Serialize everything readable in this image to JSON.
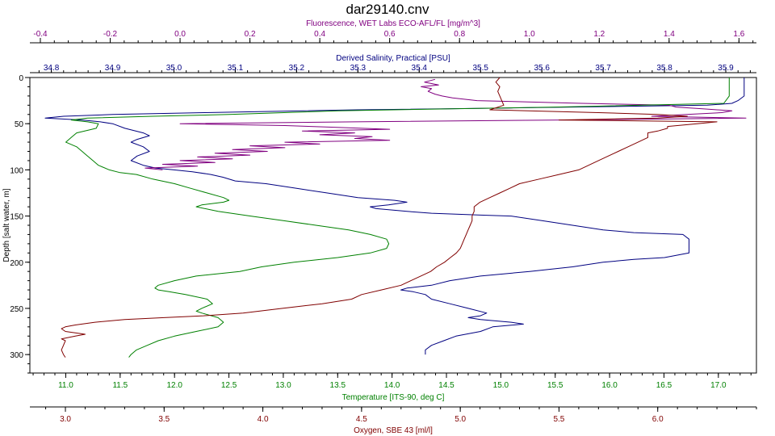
{
  "chart_data": {
    "type": "line",
    "title": "dar29140.cnv",
    "ylabel": "Depth [salt water, m]",
    "ylim": [
      0,
      320
    ],
    "y_ticks": [
      0,
      50,
      100,
      150,
      200,
      250,
      300
    ],
    "grid": false,
    "colors": {
      "fluorescence": "#800080",
      "salinity": "#000080",
      "temperature": "#008000",
      "oxygen": "#800000"
    },
    "axes": {
      "fluorescence": {
        "label": "Fluorescence, WET Labs ECO-AFL/FL [mg/m^3]",
        "range": [
          -0.43,
          1.65
        ],
        "ticks": [
          "-0.4",
          "-0.2",
          "0.0",
          "0.2",
          "0.4",
          "0.6",
          "0.8",
          "1.0",
          "1.2",
          "1.4",
          "1.6"
        ]
      },
      "salinity": {
        "label": "Derived Salinity, Practical [PSU]",
        "range": [
          34.765,
          35.95
        ],
        "ticks": [
          "34.8",
          "34.9",
          "35.0",
          "35.1",
          "35.2",
          "35.3",
          "35.4",
          "35.5",
          "35.6",
          "35.7",
          "35.8",
          "35.9"
        ]
      },
      "temperature": {
        "label": "Temperature [ITS-90, deg C]",
        "range": [
          10.67,
          17.35
        ],
        "ticks": [
          "11.0",
          "11.5",
          "12.0",
          "12.5",
          "13.0",
          "13.5",
          "14.0",
          "14.5",
          "15.0",
          "15.5",
          "16.0",
          "16.5",
          "17.0"
        ]
      },
      "oxygen": {
        "label": "Oxygen, SBE 43 [ml/l]",
        "range": [
          2.82,
          6.5
        ],
        "ticks": [
          "3.0",
          "3.5",
          "4.0",
          "4.5",
          "5.0",
          "5.5",
          "6.0"
        ]
      }
    },
    "series": [
      {
        "key": "salinity",
        "depth": [
          0,
          10,
          20,
          25,
          28,
          30,
          33,
          35,
          38,
          40,
          42,
          44,
          46,
          48,
          50,
          55,
          60,
          63,
          67,
          70,
          75,
          80,
          85,
          90,
          95,
          98,
          100,
          102,
          105,
          108,
          112,
          115,
          120,
          125,
          130,
          133,
          135,
          138,
          140,
          142,
          145,
          147,
          149,
          150,
          155,
          160,
          165,
          168,
          170,
          175,
          180,
          185,
          190,
          195,
          197,
          200,
          205,
          210,
          215,
          220,
          225,
          228,
          230,
          232,
          235,
          240,
          245,
          250,
          255,
          258,
          260,
          262,
          265,
          267,
          270,
          275,
          280,
          285,
          290,
          295,
          300
        ],
        "values": [
          35.93,
          35.93,
          35.93,
          35.92,
          35.91,
          35.87,
          35.55,
          35.3,
          35.05,
          34.9,
          34.82,
          34.79,
          34.85,
          34.88,
          34.9,
          34.92,
          34.95,
          34.96,
          34.94,
          34.93,
          34.95,
          34.96,
          34.94,
          34.93,
          34.95,
          34.97,
          35.0,
          35.03,
          35.06,
          35.08,
          35.1,
          35.15,
          35.2,
          35.25,
          35.3,
          35.36,
          35.38,
          35.35,
          35.32,
          35.33,
          35.38,
          35.42,
          35.5,
          35.55,
          35.6,
          35.65,
          35.7,
          35.75,
          35.83,
          35.84,
          35.84,
          35.84,
          35.84,
          35.8,
          35.75,
          35.7,
          35.65,
          35.58,
          35.5,
          35.45,
          35.42,
          35.38,
          35.37,
          35.39,
          35.41,
          35.42,
          35.45,
          35.48,
          35.51,
          35.5,
          35.48,
          35.5,
          35.55,
          35.57,
          35.52,
          35.5,
          35.46,
          35.44,
          35.42,
          35.41,
          35.41
        ]
      },
      {
        "key": "fluorescence",
        "depth": [
          2,
          5,
          8,
          10,
          12,
          15,
          18,
          20,
          22,
          25,
          28,
          30,
          32,
          34,
          36,
          38,
          40,
          42,
          44,
          46,
          48,
          50,
          52,
          54,
          56,
          58,
          60,
          62,
          64,
          66,
          68,
          70,
          72,
          74,
          76,
          78,
          80,
          82,
          84,
          86,
          88,
          90,
          92,
          94,
          96,
          98,
          100
        ],
        "values": [
          0.73,
          0.7,
          0.74,
          0.69,
          0.72,
          0.71,
          0.73,
          0.75,
          0.78,
          0.85,
          1.15,
          1.4,
          1.42,
          1.5,
          1.58,
          1.55,
          1.45,
          1.35,
          1.62,
          1.1,
          0.5,
          0.0,
          0.3,
          0.45,
          0.6,
          0.35,
          0.5,
          0.4,
          0.55,
          0.5,
          0.6,
          0.3,
          0.4,
          0.2,
          0.3,
          0.15,
          0.25,
          0.1,
          0.2,
          0.05,
          0.15,
          0.0,
          0.1,
          -0.05,
          0.05,
          -0.1,
          -0.05
        ]
      },
      {
        "key": "temperature",
        "depth": [
          0,
          10,
          20,
          28,
          32,
          36,
          40,
          42,
          44,
          46,
          48,
          50,
          55,
          60,
          65,
          70,
          75,
          80,
          85,
          90,
          95,
          100,
          103,
          105,
          110,
          115,
          120,
          125,
          130,
          133,
          135,
          138,
          140,
          145,
          150,
          155,
          160,
          165,
          170,
          175,
          180,
          185,
          190,
          195,
          200,
          205,
          210,
          215,
          220,
          225,
          228,
          230,
          232,
          235,
          240,
          245,
          250,
          253,
          255,
          260,
          265,
          270,
          275,
          280,
          285,
          290,
          295,
          300,
          303
        ],
        "values": [
          17.1,
          17.1,
          17.1,
          17.05,
          15.5,
          13.5,
          12.5,
          11.8,
          11.2,
          11.05,
          11.2,
          11.3,
          11.28,
          11.1,
          11.05,
          11.0,
          11.1,
          11.15,
          11.2,
          11.25,
          11.3,
          11.4,
          11.5,
          11.65,
          11.8,
          12.0,
          12.15,
          12.3,
          12.45,
          12.5,
          12.45,
          12.25,
          12.2,
          12.4,
          12.7,
          13.0,
          13.3,
          13.6,
          13.8,
          13.95,
          13.97,
          13.95,
          13.8,
          13.5,
          13.1,
          12.8,
          12.6,
          12.2,
          12.0,
          11.85,
          11.82,
          11.85,
          11.95,
          12.1,
          12.3,
          12.35,
          12.25,
          12.2,
          12.25,
          12.4,
          12.45,
          12.4,
          12.2,
          12.0,
          11.85,
          11.75,
          11.65,
          11.6,
          11.58
        ]
      },
      {
        "key": "oxygen",
        "depth": [
          0,
          5,
          10,
          15,
          20,
          25,
          30,
          35,
          38,
          40,
          42,
          44,
          46,
          48,
          50,
          53,
          55,
          58,
          60,
          65,
          70,
          75,
          80,
          85,
          90,
          95,
          100,
          105,
          110,
          115,
          120,
          125,
          130,
          135,
          140,
          145,
          150,
          155,
          160,
          165,
          170,
          175,
          180,
          185,
          190,
          195,
          200,
          205,
          210,
          215,
          220,
          225,
          230,
          235,
          240,
          245,
          250,
          255,
          258,
          260,
          262,
          265,
          268,
          270,
          272,
          275,
          278,
          280,
          283,
          285,
          290,
          295,
          300,
          303
        ],
        "values": [
          5.2,
          5.18,
          5.2,
          5.19,
          5.2,
          5.21,
          5.22,
          5.15,
          5.7,
          6.0,
          6.15,
          6.0,
          5.5,
          6.3,
          6.2,
          6.05,
          6.05,
          6.0,
          5.95,
          5.95,
          5.9,
          5.85,
          5.8,
          5.75,
          5.7,
          5.65,
          5.6,
          5.5,
          5.4,
          5.3,
          5.25,
          5.2,
          5.15,
          5.1,
          5.07,
          5.07,
          5.06,
          5.06,
          5.05,
          5.04,
          5.03,
          5.02,
          5.01,
          5.0,
          4.98,
          4.95,
          4.92,
          4.88,
          4.85,
          4.8,
          4.75,
          4.7,
          4.6,
          4.5,
          4.45,
          4.3,
          4.1,
          3.9,
          3.7,
          3.5,
          3.3,
          3.15,
          3.05,
          3.0,
          2.98,
          3.0,
          3.1,
          3.05,
          2.98,
          3.0,
          2.99,
          2.98,
          2.99,
          3.0
        ]
      }
    ]
  }
}
